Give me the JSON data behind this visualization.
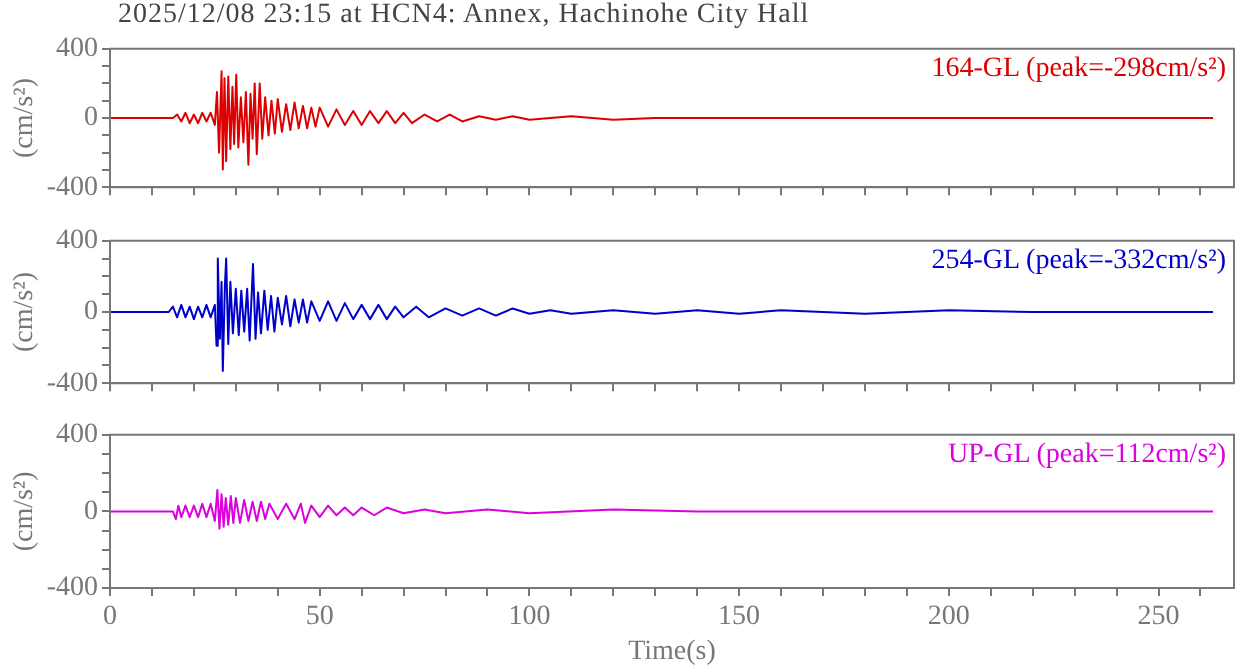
{
  "chart_data": [
    {
      "type": "line",
      "title": "2025/12/08 23:15 at HCN4: Annex, Hachinohe City Hall",
      "ylabel": "(cm/s²)",
      "xlim": [
        0,
        268
      ],
      "ylim": [
        -400,
        400
      ],
      "grid": false,
      "marker": "none",
      "tick_labels": "y",
      "xticks": [
        0,
        {
          "value": 10,
          "label": null
        },
        {
          "value": 20,
          "label": null
        },
        {
          "value": 30,
          "label": null
        },
        {
          "value": 40,
          "label": null
        },
        50,
        {
          "value": 60,
          "label": null
        },
        {
          "value": 70,
          "label": null
        },
        {
          "value": 80,
          "label": null
        },
        {
          "value": 90,
          "label": null
        },
        100,
        {
          "value": 110,
          "label": null
        },
        {
          "value": 120,
          "label": null
        },
        {
          "value": 130,
          "label": null
        },
        {
          "value": 140,
          "label": null
        },
        150,
        {
          "value": 160,
          "label": null
        },
        {
          "value": 170,
          "label": null
        },
        {
          "value": 180,
          "label": null
        },
        {
          "value": 190,
          "label": null
        },
        200,
        {
          "value": 210,
          "label": null
        },
        {
          "value": 220,
          "label": null
        },
        {
          "value": 230,
          "label": null
        },
        {
          "value": 240,
          "label": null
        },
        250,
        {
          "value": 260,
          "label": null
        }
      ],
      "yticks": [
        -400,
        {
          "value": -300,
          "label": null
        },
        {
          "value": -200,
          "label": null
        },
        {
          "value": -100,
          "label": null
        },
        0,
        {
          "value": 100,
          "label": null
        },
        {
          "value": 200,
          "label": null
        },
        {
          "value": 300,
          "label": null
        },
        400
      ],
      "series": [
        {
          "name": "164-GL (peak=-298cm/s²)",
          "color": "#dd0000",
          "x": [
            0,
            15,
            16,
            17,
            18,
            19,
            20,
            21,
            22,
            23,
            24,
            25,
            25.5,
            26,
            26.6,
            26.9,
            27.3,
            27.7,
            28.2,
            28.7,
            29.2,
            29.6,
            30.1,
            30.6,
            31.2,
            31.8,
            32.4,
            33,
            33.5,
            34,
            34.5,
            35,
            35.7,
            36.3,
            37,
            37.8,
            38.5,
            39.3,
            40,
            41,
            42,
            43,
            44,
            45,
            46,
            47,
            48,
            49,
            50,
            52,
            54,
            56,
            58,
            60,
            62,
            64,
            66,
            68,
            70,
            72,
            75,
            78,
            81,
            84,
            88,
            92,
            96,
            100,
            110,
            120,
            130,
            150,
            170,
            200,
            230,
            263
          ],
          "values": [
            0,
            0,
            20,
            -20,
            30,
            -30,
            20,
            -30,
            30,
            -20,
            30,
            -40,
            150,
            -200,
            270,
            -298,
            230,
            -250,
            240,
            -180,
            180,
            -150,
            250,
            -170,
            120,
            -140,
            150,
            -270,
            140,
            -120,
            200,
            -210,
            200,
            -120,
            120,
            -100,
            100,
            -90,
            110,
            -80,
            80,
            -70,
            90,
            -60,
            70,
            -60,
            60,
            -50,
            60,
            -50,
            50,
            -40,
            40,
            -40,
            40,
            -30,
            40,
            -30,
            30,
            -30,
            20,
            -20,
            20,
            -20,
            10,
            -10,
            10,
            -10,
            10,
            -10,
            0,
            0,
            0,
            0,
            0,
            0
          ]
        }
      ]
    },
    {
      "type": "line",
      "ylabel": "(cm/s²)",
      "xlim": [
        0,
        268
      ],
      "ylim": [
        -400,
        400
      ],
      "grid": false,
      "marker": "none",
      "tick_labels": "y",
      "xticks": [
        0,
        {
          "value": 10,
          "label": null
        },
        {
          "value": 20,
          "label": null
        },
        {
          "value": 30,
          "label": null
        },
        {
          "value": 40,
          "label": null
        },
        50,
        {
          "value": 60,
          "label": null
        },
        {
          "value": 70,
          "label": null
        },
        {
          "value": 80,
          "label": null
        },
        {
          "value": 90,
          "label": null
        },
        100,
        {
          "value": 110,
          "label": null
        },
        {
          "value": 120,
          "label": null
        },
        {
          "value": 130,
          "label": null
        },
        {
          "value": 140,
          "label": null
        },
        150,
        {
          "value": 160,
          "label": null
        },
        {
          "value": 170,
          "label": null
        },
        {
          "value": 180,
          "label": null
        },
        {
          "value": 190,
          "label": null
        },
        200,
        {
          "value": 210,
          "label": null
        },
        {
          "value": 220,
          "label": null
        },
        {
          "value": 230,
          "label": null
        },
        {
          "value": 240,
          "label": null
        },
        250,
        {
          "value": 260,
          "label": null
        }
      ],
      "yticks": [
        -400,
        {
          "value": -300,
          "label": null
        },
        {
          "value": -200,
          "label": null
        },
        {
          "value": -100,
          "label": null
        },
        0,
        {
          "value": 100,
          "label": null
        },
        {
          "value": 200,
          "label": null
        },
        {
          "value": 300,
          "label": null
        },
        400
      ],
      "series": [
        {
          "name": "254-GL (peak=-332cm/s²)",
          "color": "#0000cc",
          "x": [
            0,
            14,
            15,
            16,
            17,
            18,
            19,
            20,
            21,
            22,
            23,
            24,
            25,
            25.4,
            25.7,
            26.2,
            26.6,
            26.9,
            27.4,
            27.7,
            28.2,
            28.7,
            29.3,
            30,
            30.7,
            31.3,
            32,
            32.7,
            33.3,
            34.1,
            34.7,
            35.3,
            36,
            36.8,
            37.6,
            38.4,
            39.2,
            40,
            41,
            42,
            43,
            44,
            45,
            46,
            47,
            48,
            50,
            52,
            54,
            56,
            58,
            60,
            62,
            64,
            66,
            68,
            70,
            73,
            76,
            80,
            84,
            88,
            92,
            96,
            100,
            105,
            110,
            120,
            130,
            140,
            150,
            160,
            180,
            200,
            220,
            240,
            263
          ],
          "values": [
            0,
            0,
            30,
            -30,
            40,
            -30,
            30,
            -40,
            30,
            -30,
            40,
            -30,
            40,
            -190,
            300,
            -150,
            170,
            -332,
            150,
            300,
            -180,
            170,
            -120,
            130,
            -130,
            120,
            -110,
            130,
            -160,
            270,
            -150,
            110,
            -120,
            120,
            -100,
            90,
            -110,
            80,
            -70,
            90,
            -80,
            70,
            -60,
            70,
            -60,
            60,
            -50,
            60,
            -50,
            50,
            -40,
            40,
            -40,
            40,
            -40,
            30,
            -30,
            30,
            -30,
            20,
            -20,
            20,
            -20,
            20,
            -10,
            10,
            -10,
            10,
            -10,
            10,
            -10,
            10,
            -10,
            10,
            0,
            0,
            0
          ]
        }
      ]
    },
    {
      "type": "line",
      "xlabel": "Time(s)",
      "ylabel": "(cm/s²)",
      "xlim": [
        0,
        268
      ],
      "ylim": [
        -400,
        400
      ],
      "grid": false,
      "marker": "none",
      "xticks": [
        0,
        {
          "value": 10,
          "label": null
        },
        {
          "value": 20,
          "label": null
        },
        {
          "value": 30,
          "label": null
        },
        {
          "value": 40,
          "label": null
        },
        50,
        {
          "value": 60,
          "label": null
        },
        {
          "value": 70,
          "label": null
        },
        {
          "value": 80,
          "label": null
        },
        {
          "value": 90,
          "label": null
        },
        100,
        {
          "value": 110,
          "label": null
        },
        {
          "value": 120,
          "label": null
        },
        {
          "value": 130,
          "label": null
        },
        {
          "value": 140,
          "label": null
        },
        150,
        {
          "value": 160,
          "label": null
        },
        {
          "value": 170,
          "label": null
        },
        {
          "value": 180,
          "label": null
        },
        {
          "value": 190,
          "label": null
        },
        200,
        {
          "value": 210,
          "label": null
        },
        {
          "value": 220,
          "label": null
        },
        {
          "value": 230,
          "label": null
        },
        {
          "value": 240,
          "label": null
        },
        250,
        {
          "value": 260,
          "label": null
        }
      ],
      "yticks": [
        -400,
        {
          "value": -300,
          "label": null
        },
        {
          "value": -200,
          "label": null
        },
        {
          "value": -100,
          "label": null
        },
        0,
        {
          "value": 100,
          "label": null
        },
        {
          "value": 200,
          "label": null
        },
        {
          "value": 300,
          "label": null
        },
        400
      ],
      "series": [
        {
          "name": "UP-GL (peak=112cm/s²)",
          "color": "#dd00dd",
          "x": [
            0,
            15,
            15.7,
            16.3,
            17,
            18,
            19,
            20,
            21,
            22,
            23,
            24,
            25,
            25.6,
            26.1,
            26.6,
            27.1,
            27.6,
            28.2,
            28.8,
            29.4,
            30,
            31,
            32,
            33,
            34,
            35,
            36,
            37,
            38,
            40,
            42,
            44,
            45.5,
            46.5,
            48,
            50,
            52,
            54,
            56,
            58,
            60,
            63,
            66,
            70,
            75,
            80,
            90,
            100,
            120,
            140,
            170,
            200,
            230,
            263
          ],
          "values": [
            0,
            0,
            -40,
            30,
            -30,
            30,
            -30,
            30,
            -30,
            40,
            -30,
            40,
            -50,
            112,
            -90,
            90,
            -80,
            70,
            -70,
            80,
            -60,
            70,
            -60,
            60,
            -50,
            50,
            -50,
            50,
            -40,
            40,
            -40,
            40,
            -40,
            40,
            -60,
            30,
            -30,
            30,
            -20,
            20,
            -20,
            20,
            -20,
            20,
            -10,
            10,
            -10,
            10,
            -10,
            10,
            0,
            0,
            0,
            0,
            0
          ]
        }
      ]
    }
  ]
}
